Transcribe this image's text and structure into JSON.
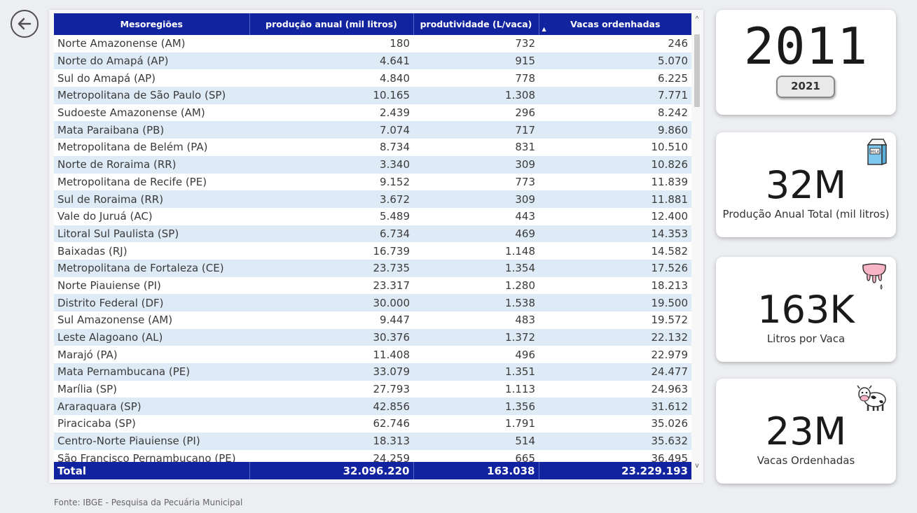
{
  "table": {
    "headers": [
      "Mesoregiões",
      "produção anual (mil litros)",
      "produtividade (L/vaca)",
      "Vacas ordenhadas"
    ],
    "sorted_column": 3,
    "rows": [
      {
        "region": "Norte Amazonense (AM)",
        "production": "180",
        "productivity": "732",
        "cows": "246"
      },
      {
        "region": "Norte do Amapá (AP)",
        "production": "4.641",
        "productivity": "915",
        "cows": "5.070"
      },
      {
        "region": "Sul do Amapá (AP)",
        "production": "4.840",
        "productivity": "778",
        "cows": "6.225"
      },
      {
        "region": "Metropolitana de São Paulo (SP)",
        "production": "10.165",
        "productivity": "1.308",
        "cows": "7.771"
      },
      {
        "region": "Sudoeste Amazonense (AM)",
        "production": "2.439",
        "productivity": "296",
        "cows": "8.242"
      },
      {
        "region": "Mata Paraibana (PB)",
        "production": "7.074",
        "productivity": "717",
        "cows": "9.860"
      },
      {
        "region": "Metropolitana de Belém (PA)",
        "production": "8.734",
        "productivity": "831",
        "cows": "10.510"
      },
      {
        "region": "Norte de Roraima (RR)",
        "production": "3.340",
        "productivity": "309",
        "cows": "10.826"
      },
      {
        "region": "Metropolitana de Recife (PE)",
        "production": "9.152",
        "productivity": "773",
        "cows": "11.839"
      },
      {
        "region": "Sul de Roraima (RR)",
        "production": "3.672",
        "productivity": "309",
        "cows": "11.881"
      },
      {
        "region": "Vale do Juruá (AC)",
        "production": "5.489",
        "productivity": "443",
        "cows": "12.400"
      },
      {
        "region": "Litoral Sul Paulista (SP)",
        "production": "6.734",
        "productivity": "469",
        "cows": "14.353"
      },
      {
        "region": "Baixadas (RJ)",
        "production": "16.739",
        "productivity": "1.148",
        "cows": "14.582"
      },
      {
        "region": "Metropolitana de Fortaleza (CE)",
        "production": "23.735",
        "productivity": "1.354",
        "cows": "17.526"
      },
      {
        "region": "Norte Piauiense (PI)",
        "production": "23.317",
        "productivity": "1.280",
        "cows": "18.213"
      },
      {
        "region": "Distrito Federal (DF)",
        "production": "30.000",
        "productivity": "1.538",
        "cows": "19.500"
      },
      {
        "region": "Sul Amazonense (AM)",
        "production": "9.447",
        "productivity": "483",
        "cows": "19.572"
      },
      {
        "region": "Leste Alagoano (AL)",
        "production": "30.376",
        "productivity": "1.372",
        "cows": "22.132"
      },
      {
        "region": "Marajó (PA)",
        "production": "11.408",
        "productivity": "496",
        "cows": "22.979"
      },
      {
        "region": "Mata Pernambucana (PE)",
        "production": "33.079",
        "productivity": "1.351",
        "cows": "24.477"
      },
      {
        "region": "Marília (SP)",
        "production": "27.793",
        "productivity": "1.113",
        "cows": "24.963"
      },
      {
        "region": "Araraquara (SP)",
        "production": "42.856",
        "productivity": "1.356",
        "cows": "31.612"
      },
      {
        "region": "Piracicaba (SP)",
        "production": "62.746",
        "productivity": "1.791",
        "cows": "35.026"
      },
      {
        "region": "Centro-Norte Piauiense (PI)",
        "production": "18.313",
        "productivity": "514",
        "cows": "35.632"
      },
      {
        "region": "São Francisco Pernambucano (PE)",
        "production": "24.259",
        "productivity": "665",
        "cows": "36.495"
      }
    ],
    "total": {
      "label": "Total",
      "production": "32.096.220",
      "productivity": "163.038",
      "cows": "23.229.193"
    }
  },
  "source": "Fonte: IBGE - Pesquisa da Pecuária Municipal",
  "year_card": {
    "value": "2011",
    "button_label": "2021"
  },
  "kpis": [
    {
      "value": "32M",
      "label": "Produção Anual Total (mil litros)",
      "icon": "milk-carton-icon"
    },
    {
      "value": "163K",
      "label": "Litros por Vaca",
      "icon": "cow-udder-icon"
    },
    {
      "value": "23M",
      "label": "Vacas Ordenhadas",
      "icon": "cow-icon"
    }
  ],
  "colors": {
    "header": "#1223a0",
    "row_alt": "#deebf7",
    "background": "#eceef1"
  }
}
